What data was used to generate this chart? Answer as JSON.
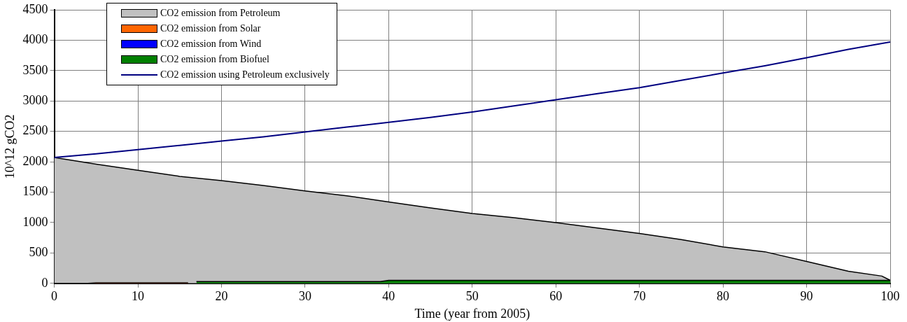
{
  "chart_data": {
    "type": "area",
    "xlabel": "Time (year from 2005)",
    "ylabel": "10^12 gCO2",
    "xlim": [
      0,
      100
    ],
    "xticks": [
      0,
      10,
      20,
      30,
      40,
      50,
      60,
      70,
      80,
      90,
      100
    ],
    "ylim": [
      0,
      4500
    ],
    "yticks": [
      0,
      500,
      1000,
      1500,
      2000,
      2500,
      3000,
      3500,
      4000,
      4500
    ],
    "grid": true,
    "legend": "top left",
    "series": [
      {
        "name": "CO2 emission from Petroleum",
        "color": "#c0c0c0",
        "x": [
          0,
          5,
          10,
          15,
          20,
          25,
          30,
          35,
          40,
          45,
          50,
          55,
          60,
          65,
          70,
          75,
          80,
          85,
          90,
          95,
          99,
          100
        ],
        "values": [
          2070,
          1960,
          1860,
          1760,
          1690,
          1610,
          1520,
          1440,
          1340,
          1240,
          1150,
          1080,
          1000,
          910,
          820,
          720,
          600,
          520,
          360,
          200,
          120,
          50
        ]
      },
      {
        "name": "CO2 emission from Solar",
        "color": "#ff6600",
        "x": [
          0,
          4,
          5,
          16
        ],
        "values": [
          0,
          0,
          10,
          10
        ]
      },
      {
        "name": "CO2 emission from Wind",
        "color": "#0000ff"
      },
      {
        "name": "CO2 emission from Biofuel",
        "color": "#008000",
        "x": [
          17,
          39,
          40,
          100
        ],
        "values": [
          30,
          30,
          50,
          50
        ]
      },
      {
        "name": "CO2 emission using Petroleum exclusively",
        "type": "line",
        "color": "#000080",
        "x": [
          0,
          5,
          10,
          15,
          20,
          25,
          30,
          35,
          40,
          45,
          50,
          55,
          60,
          65,
          70,
          75,
          80,
          85,
          90,
          95,
          100
        ],
        "values": [
          2070,
          2130,
          2200,
          2270,
          2340,
          2410,
          2490,
          2570,
          2650,
          2730,
          2820,
          2920,
          3020,
          3120,
          3220,
          3340,
          3460,
          3580,
          3710,
          3850,
          3970
        ]
      }
    ]
  }
}
